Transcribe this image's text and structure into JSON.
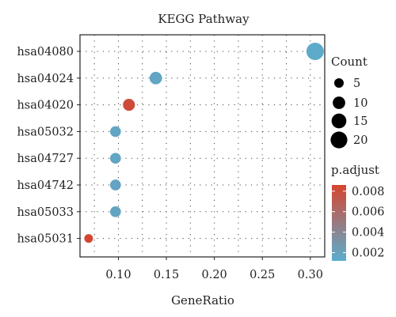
{
  "chart_data": {
    "type": "scatter",
    "title": "KEGG Pathway",
    "xlabel": "GeneRatio",
    "ylabel": "",
    "xlim": [
      0.06,
      0.315
    ],
    "xticks": [
      "0.10",
      "0.15",
      "0.20",
      "0.25",
      "0.30"
    ],
    "xtick_values": [
      0.1,
      0.15,
      0.2,
      0.25,
      0.3
    ],
    "categories": [
      "hsa04080",
      "hsa04024",
      "hsa04020",
      "hsa05032",
      "hsa04727",
      "hsa04742",
      "hsa05033",
      "hsa05031"
    ],
    "points": [
      {
        "category": "hsa04080",
        "x": 0.305,
        "count": 22,
        "p_adjust": 0.0015
      },
      {
        "category": "hsa04024",
        "x": 0.139,
        "count": 10,
        "p_adjust": 0.0018
      },
      {
        "category": "hsa04020",
        "x": 0.111,
        "count": 9,
        "p_adjust": 0.0082
      },
      {
        "category": "hsa05032",
        "x": 0.097,
        "count": 7,
        "p_adjust": 0.0018
      },
      {
        "category": "hsa04727",
        "x": 0.097,
        "count": 7,
        "p_adjust": 0.0018
      },
      {
        "category": "hsa04742",
        "x": 0.097,
        "count": 7,
        "p_adjust": 0.0019
      },
      {
        "category": "hsa05033",
        "x": 0.097,
        "count": 7,
        "p_adjust": 0.0019
      },
      {
        "category": "hsa05031",
        "x": 0.069,
        "count": 4,
        "p_adjust": 0.0085
      }
    ],
    "grid": "dotted",
    "legend_placement": "right",
    "size_legend": {
      "title": "Count",
      "labels": [
        "5",
        "10",
        "15",
        "20"
      ],
      "values": [
        5,
        10,
        15,
        20
      ]
    },
    "color_legend": {
      "title": "p.adjust",
      "labels": [
        "0.008",
        "0.006",
        "0.004",
        "0.002"
      ],
      "values": [
        0.008,
        0.006,
        0.004,
        0.002
      ],
      "low_color": "#5aaed0",
      "high_color": "#d6452f",
      "range": [
        0.0012,
        0.0086
      ]
    }
  }
}
